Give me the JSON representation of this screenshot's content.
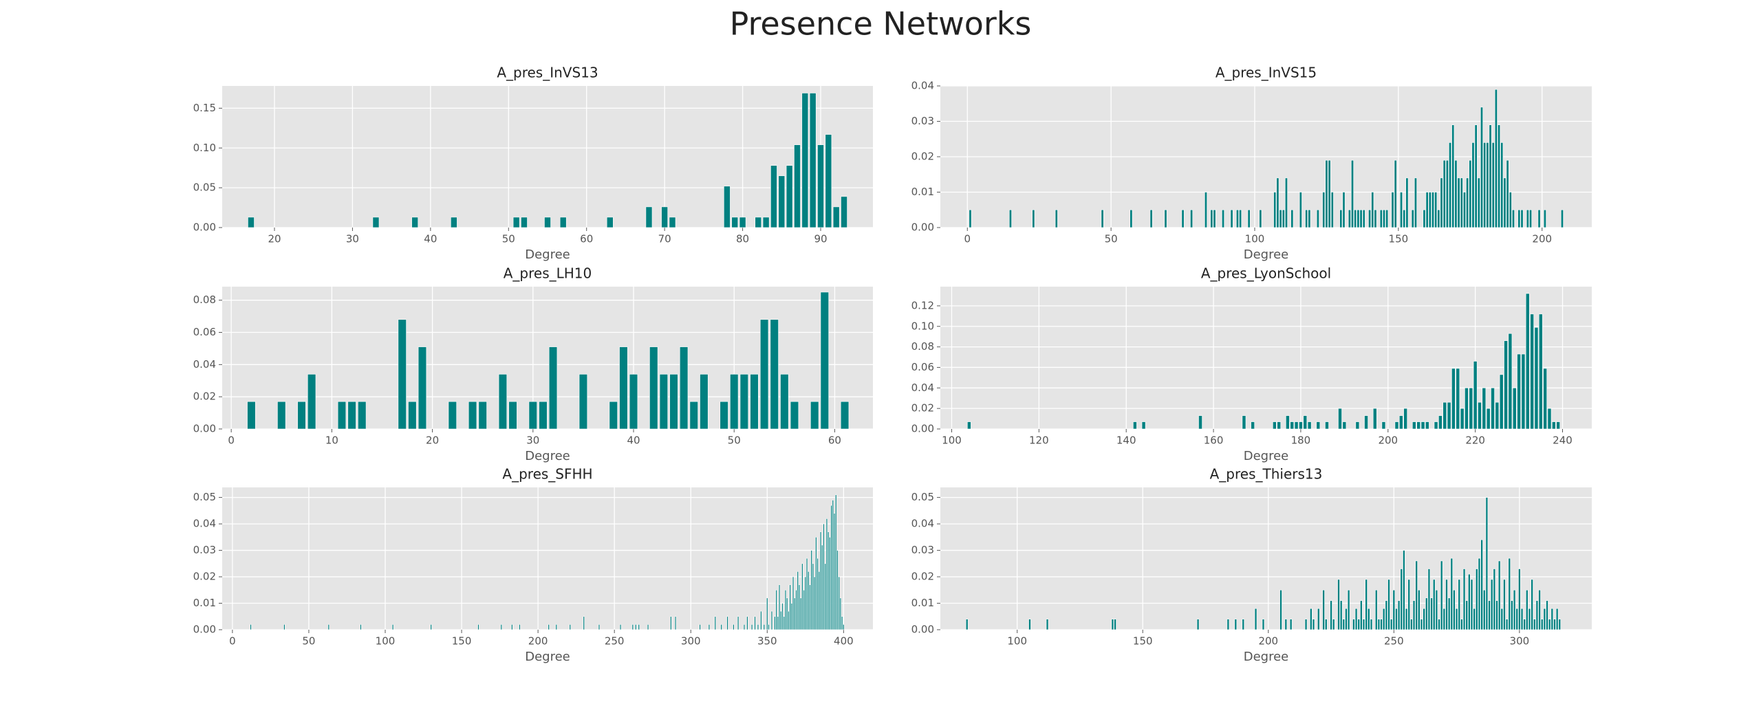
{
  "title": "Presence Networks",
  "chart_data": [
    {
      "type": "bar",
      "title": "A_pres_InVS13",
      "xlabel": "Degree",
      "color": "#008080",
      "grid": true,
      "x": [
        17,
        33,
        38,
        43,
        51,
        52,
        55,
        57,
        63,
        68,
        70,
        71,
        78,
        79,
        80,
        82,
        83,
        84,
        85,
        86,
        87,
        88,
        89,
        90,
        91,
        92,
        93
      ],
      "values": [
        0.013,
        0.013,
        0.013,
        0.013,
        0.013,
        0.013,
        0.013,
        0.013,
        0.013,
        0.026,
        0.026,
        0.013,
        0.052,
        0.013,
        0.013,
        0.013,
        0.013,
        0.078,
        0.065,
        0.078,
        0.104,
        0.169,
        0.169,
        0.104,
        0.117,
        0.026,
        0.039
      ],
      "xlim": [
        13.3,
        96.7
      ],
      "xticks": [
        20,
        30,
        40,
        50,
        60,
        70,
        80,
        90
      ],
      "ylim": [
        0,
        0.178
      ],
      "yticks": [
        {
          "value": 0,
          "label": "0.00"
        },
        {
          "value": 0.05,
          "label": "0.05"
        },
        {
          "value": 0.1,
          "label": "0.10"
        },
        {
          "value": 0.15,
          "label": "0.15"
        }
      ]
    },
    {
      "type": "bar",
      "title": "A_pres_InVS15",
      "xlabel": "Degree",
      "color": "#008080",
      "grid": true,
      "x": [
        1,
        15,
        23,
        31,
        47,
        57,
        64,
        69,
        75,
        78,
        83,
        85,
        86,
        89,
        92,
        94,
        95,
        98,
        102,
        107,
        108,
        109,
        110,
        111,
        113,
        116,
        118,
        119,
        122,
        124,
        125,
        126,
        127,
        130,
        131,
        133,
        134,
        135,
        136,
        137,
        138,
        140,
        141,
        142,
        144,
        145,
        146,
        148,
        149,
        151,
        152,
        153,
        155,
        156,
        159,
        160,
        161,
        162,
        163,
        164,
        165,
        166,
        167,
        168,
        169,
        170,
        171,
        172,
        173,
        174,
        175,
        176,
        177,
        178,
        179,
        180,
        181,
        182,
        183,
        184,
        185,
        186,
        187,
        188,
        189,
        190,
        192,
        193,
        195,
        196,
        199,
        201,
        207
      ],
      "values": [
        0.005,
        0.005,
        0.005,
        0.005,
        0.005,
        0.005,
        0.005,
        0.005,
        0.005,
        0.005,
        0.01,
        0.005,
        0.005,
        0.005,
        0.005,
        0.005,
        0.005,
        0.005,
        0.005,
        0.01,
        0.014,
        0.005,
        0.005,
        0.014,
        0.005,
        0.01,
        0.005,
        0.005,
        0.005,
        0.01,
        0.019,
        0.019,
        0.01,
        0.005,
        0.01,
        0.005,
        0.019,
        0.005,
        0.005,
        0.005,
        0.005,
        0.005,
        0.01,
        0.005,
        0.005,
        0.005,
        0.005,
        0.01,
        0.019,
        0.01,
        0.005,
        0.014,
        0.005,
        0.014,
        0.005,
        0.01,
        0.01,
        0.01,
        0.01,
        0.005,
        0.014,
        0.019,
        0.019,
        0.024,
        0.029,
        0.019,
        0.014,
        0.014,
        0.01,
        0.014,
        0.019,
        0.024,
        0.029,
        0.014,
        0.034,
        0.024,
        0.024,
        0.029,
        0.024,
        0.039,
        0.029,
        0.024,
        0.014,
        0.019,
        0.01,
        0.005,
        0.005,
        0.005,
        0.005,
        0.005,
        0.005,
        0.005,
        0.005
      ],
      "xlim": [
        -9.4,
        217.3
      ],
      "xticks": [
        0,
        50,
        100,
        150,
        200
      ],
      "ylim": [
        0,
        0.04
      ],
      "yticks": [
        {
          "value": 0,
          "label": "0.00"
        },
        {
          "value": 0.01,
          "label": "0.01"
        },
        {
          "value": 0.02,
          "label": "0.02"
        },
        {
          "value": 0.03,
          "label": "0.03"
        },
        {
          "value": 0.04,
          "label": "0.04"
        }
      ]
    },
    {
      "type": "bar",
      "title": "A_pres_LH10",
      "xlabel": "Degree",
      "color": "#008080",
      "grid": true,
      "x": [
        2,
        5,
        7,
        8,
        11,
        12,
        13,
        17,
        18,
        19,
        22,
        24,
        25,
        27,
        28,
        30,
        31,
        32,
        35,
        38,
        39,
        40,
        42,
        43,
        44,
        45,
        46,
        47,
        49,
        50,
        51,
        52,
        53,
        54,
        55,
        56,
        58,
        59,
        61
      ],
      "values": [
        0.017,
        0.017,
        0.017,
        0.034,
        0.017,
        0.017,
        0.017,
        0.068,
        0.017,
        0.051,
        0.017,
        0.017,
        0.017,
        0.034,
        0.017,
        0.017,
        0.017,
        0.051,
        0.034,
        0.017,
        0.051,
        0.034,
        0.051,
        0.034,
        0.034,
        0.051,
        0.017,
        0.034,
        0.017,
        0.034,
        0.034,
        0.034,
        0.068,
        0.068,
        0.034,
        0.017,
        0.017,
        0.085,
        0.017
      ],
      "xlim": [
        -0.9,
        63.8
      ],
      "xticks": [
        0,
        10,
        20,
        30,
        40,
        50,
        60
      ],
      "ylim": [
        0,
        0.0884
      ],
      "yticks": [
        {
          "value": 0,
          "label": "0.00"
        },
        {
          "value": 0.02,
          "label": "0.02"
        },
        {
          "value": 0.04,
          "label": "0.04"
        },
        {
          "value": 0.06,
          "label": "0.06"
        },
        {
          "value": 0.08,
          "label": "0.08"
        }
      ]
    },
    {
      "type": "bar",
      "title": "A_pres_LyonSchool",
      "xlabel": "Degree",
      "color": "#008080",
      "grid": true,
      "x": [
        104,
        142,
        144,
        157,
        167,
        169,
        174,
        175,
        177,
        178,
        179,
        180,
        181,
        182,
        184,
        186,
        189,
        190,
        193,
        195,
        197,
        199,
        202,
        203,
        204,
        206,
        207,
        208,
        209,
        211,
        212,
        213,
        214,
        215,
        216,
        217,
        218,
        219,
        220,
        221,
        222,
        223,
        224,
        225,
        226,
        227,
        228,
        229,
        230,
        231,
        232,
        233,
        234,
        235,
        236,
        237,
        238,
        239
      ],
      "values": [
        0.007,
        0.007,
        0.007,
        0.013,
        0.013,
        0.007,
        0.007,
        0.007,
        0.013,
        0.007,
        0.007,
        0.007,
        0.013,
        0.007,
        0.007,
        0.007,
        0.02,
        0.007,
        0.007,
        0.013,
        0.02,
        0.007,
        0.007,
        0.013,
        0.02,
        0.007,
        0.007,
        0.007,
        0.007,
        0.007,
        0.013,
        0.026,
        0.026,
        0.059,
        0.059,
        0.02,
        0.04,
        0.04,
        0.066,
        0.026,
        0.04,
        0.02,
        0.04,
        0.026,
        0.053,
        0.086,
        0.093,
        0.04,
        0.073,
        0.073,
        0.132,
        0.112,
        0.099,
        0.112,
        0.059,
        0.02,
        0.007,
        0.007
      ],
      "xlim": [
        97.4,
        246.7
      ],
      "xticks": [
        100,
        120,
        140,
        160,
        180,
        200,
        220,
        240
      ],
      "ylim": [
        0,
        0.1387
      ],
      "yticks": [
        {
          "value": 0,
          "label": "0.00"
        },
        {
          "value": 0.02,
          "label": "0.02"
        },
        {
          "value": 0.04,
          "label": "0.04"
        },
        {
          "value": 0.06,
          "label": "0.06"
        },
        {
          "value": 0.08,
          "label": "0.08"
        },
        {
          "value": 0.1,
          "label": "0.10"
        },
        {
          "value": 0.12,
          "label": "0.12"
        }
      ]
    },
    {
      "type": "bar",
      "title": "A_pres_SFHH",
      "xlabel": "Degree",
      "color": "#008080",
      "grid": true,
      "x": [
        12,
        34,
        63,
        84,
        105,
        130,
        161,
        176,
        183,
        188,
        207,
        212,
        221,
        230,
        240,
        254,
        262,
        264,
        266,
        272,
        287,
        290,
        306,
        312,
        316,
        320,
        324,
        328,
        331,
        335,
        337,
        340,
        342,
        344,
        346,
        348,
        350,
        351,
        353,
        355,
        356,
        357,
        358,
        359,
        360,
        361,
        362,
        363,
        364,
        365,
        366,
        367,
        368,
        369,
        370,
        371,
        372,
        373,
        374,
        375,
        376,
        377,
        378,
        379,
        380,
        381,
        382,
        383,
        384,
        385,
        386,
        387,
        388,
        389,
        390,
        391,
        392,
        393,
        394,
        395,
        396,
        397,
        398,
        399,
        400
      ],
      "values": [
        0.002,
        0.002,
        0.002,
        0.002,
        0.002,
        0.002,
        0.002,
        0.002,
        0.002,
        0.002,
        0.002,
        0.002,
        0.002,
        0.005,
        0.002,
        0.002,
        0.002,
        0.002,
        0.002,
        0.002,
        0.005,
        0.005,
        0.002,
        0.002,
        0.005,
        0.002,
        0.005,
        0.002,
        0.005,
        0.002,
        0.005,
        0.002,
        0.005,
        0.002,
        0.007,
        0.002,
        0.012,
        0.002,
        0.007,
        0.005,
        0.015,
        0.005,
        0.017,
        0.007,
        0.01,
        0.005,
        0.015,
        0.012,
        0.007,
        0.017,
        0.01,
        0.02,
        0.012,
        0.015,
        0.022,
        0.017,
        0.012,
        0.025,
        0.015,
        0.02,
        0.027,
        0.022,
        0.017,
        0.03,
        0.025,
        0.02,
        0.035,
        0.027,
        0.022,
        0.037,
        0.032,
        0.04,
        0.025,
        0.042,
        0.037,
        0.035,
        0.047,
        0.049,
        0.044,
        0.051,
        0.03,
        0.02,
        0.012,
        0.005,
        0.002
      ],
      "xlim": [
        -6.7,
        419.2
      ],
      "xticks": [
        0,
        50,
        100,
        150,
        200,
        250,
        300,
        350,
        400
      ],
      "ylim": [
        0,
        0.0538
      ],
      "yticks": [
        {
          "value": 0,
          "label": "0.00"
        },
        {
          "value": 0.01,
          "label": "0.01"
        },
        {
          "value": 0.02,
          "label": "0.02"
        },
        {
          "value": 0.03,
          "label": "0.03"
        },
        {
          "value": 0.04,
          "label": "0.04"
        },
        {
          "value": 0.05,
          "label": "0.05"
        }
      ]
    },
    {
      "type": "bar",
      "title": "A_pres_Thiers13",
      "xlabel": "Degree",
      "color": "#008080",
      "grid": true,
      "x": [
        80,
        105,
        112,
        138,
        139,
        172,
        184,
        187,
        190,
        195,
        198,
        205,
        207,
        209,
        215,
        217,
        218,
        220,
        222,
        223,
        225,
        226,
        228,
        229,
        230,
        231,
        232,
        234,
        235,
        236,
        237,
        238,
        239,
        240,
        241,
        243,
        244,
        245,
        246,
        247,
        248,
        249,
        250,
        251,
        252,
        253,
        254,
        255,
        256,
        257,
        258,
        259,
        260,
        261,
        262,
        263,
        264,
        265,
        266,
        267,
        268,
        269,
        270,
        271,
        272,
        273,
        274,
        275,
        276,
        277,
        278,
        279,
        280,
        281,
        282,
        283,
        284,
        285,
        286,
        287,
        288,
        289,
        290,
        291,
        292,
        293,
        294,
        295,
        296,
        297,
        298,
        299,
        300,
        301,
        302,
        303,
        304,
        305,
        306,
        307,
        308,
        309,
        310,
        311,
        312,
        313,
        314,
        315,
        316
      ],
      "values": [
        0.004,
        0.004,
        0.004,
        0.004,
        0.004,
        0.004,
        0.004,
        0.004,
        0.004,
        0.008,
        0.004,
        0.015,
        0.004,
        0.004,
        0.004,
        0.008,
        0.004,
        0.008,
        0.015,
        0.004,
        0.011,
        0.004,
        0.019,
        0.011,
        0.004,
        0.008,
        0.015,
        0.004,
        0.008,
        0.004,
        0.011,
        0.004,
        0.019,
        0.008,
        0.004,
        0.015,
        0.004,
        0.004,
        0.008,
        0.011,
        0.019,
        0.004,
        0.015,
        0.008,
        0.011,
        0.023,
        0.03,
        0.008,
        0.019,
        0.004,
        0.011,
        0.026,
        0.015,
        0.004,
        0.008,
        0.012,
        0.023,
        0.012,
        0.019,
        0.015,
        0.004,
        0.026,
        0.008,
        0.019,
        0.012,
        0.027,
        0.015,
        0.008,
        0.019,
        0.004,
        0.023,
        0.011,
        0.021,
        0.019,
        0.008,
        0.023,
        0.027,
        0.034,
        0.015,
        0.05,
        0.011,
        0.019,
        0.023,
        0.011,
        0.026,
        0.008,
        0.019,
        0.004,
        0.027,
        0.011,
        0.015,
        0.008,
        0.023,
        0.008,
        0.004,
        0.015,
        0.008,
        0.019,
        0.004,
        0.011,
        0.015,
        0.004,
        0.008,
        0.011,
        0.004,
        0.008,
        0.004,
        0.008,
        0.004
      ],
      "xlim": [
        69.4,
        328.8
      ],
      "xticks": [
        100,
        150,
        200,
        250,
        300
      ],
      "ylim": [
        0,
        0.0538
      ],
      "yticks": [
        {
          "value": 0,
          "label": "0.00"
        },
        {
          "value": 0.01,
          "label": "0.01"
        },
        {
          "value": 0.02,
          "label": "0.02"
        },
        {
          "value": 0.03,
          "label": "0.03"
        },
        {
          "value": 0.04,
          "label": "0.04"
        },
        {
          "value": 0.05,
          "label": "0.05"
        }
      ]
    }
  ]
}
